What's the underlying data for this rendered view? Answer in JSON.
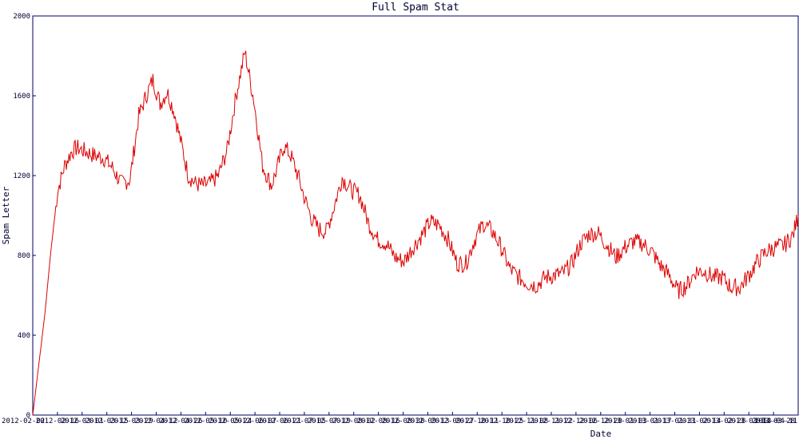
{
  "chart_data": {
    "type": "line",
    "title": "Full Spam Stat",
    "xlabel": "Date",
    "ylabel": "Spam Letter",
    "ylim": [
      0,
      2000
    ],
    "yticks": [
      "0",
      "400",
      "800",
      "1200",
      "1600",
      "2000"
    ],
    "grid": false,
    "colors": {
      "line": "#dd0000",
      "axis": "#000066",
      "text": "#000033"
    },
    "x_tick_labels": [
      "2012-02-02",
      "2012-02-16",
      "2012-03-01",
      "2012-03-15",
      "2012-03-29",
      "2012-04-12",
      "2012-04-26",
      "2012-05-10",
      "2012-05-24",
      "2012-06-07",
      "2012-06-21",
      "2012-07-05",
      "2012-07-19",
      "2012-08-02",
      "2012-08-16",
      "2012-08-30",
      "2012-09-13",
      "2012-09-27",
      "2012-10-11",
      "2012-10-25",
      "2012-11-08",
      "2012-11-22",
      "2012-12-06",
      "2012-12-20",
      "2013-01-03",
      "2013-01-17",
      "2013-01-31",
      "2013-02-14",
      "2013-02-28",
      "2013-03-14",
      "2013-03-28",
      "2013-04-11"
    ],
    "series": [
      {
        "x_day": [
          0,
          3,
          7,
          10,
          14,
          18,
          22,
          25,
          30,
          35,
          40,
          45,
          50,
          55,
          60,
          65,
          68,
          72,
          76,
          80,
          84,
          88,
          92,
          96,
          100,
          105,
          110,
          115,
          120,
          125,
          130,
          135,
          138,
          142,
          146,
          150,
          154,
          158,
          162,
          166,
          170,
          175,
          180,
          185,
          190,
          195,
          200,
          205,
          210,
          215,
          220,
          225,
          230,
          235,
          240,
          245,
          250,
          255,
          260,
          265,
          270,
          275,
          280,
          285,
          290,
          295,
          300,
          305,
          310,
          315,
          320,
          325,
          330,
          335,
          340,
          345,
          350,
          355,
          360,
          365,
          370,
          375,
          380,
          385,
          390,
          395,
          400,
          405,
          410,
          415,
          420,
          425,
          430,
          433
        ],
        "values": [
          0,
          220,
          520,
          800,
          1120,
          1250,
          1320,
          1340,
          1320,
          1300,
          1290,
          1240,
          1160,
          1180,
          1500,
          1620,
          1680,
          1560,
          1620,
          1520,
          1360,
          1200,
          1160,
          1150,
          1160,
          1200,
          1330,
          1600,
          1820,
          1580,
          1250,
          1150,
          1230,
          1350,
          1300,
          1200,
          1080,
          980,
          930,
          920,
          1030,
          1190,
          1130,
          1100,
          960,
          880,
          860,
          790,
          770,
          840,
          900,
          970,
          950,
          880,
          760,
          760,
          880,
          960,
          920,
          840,
          730,
          690,
          660,
          650,
          690,
          700,
          710,
          760,
          860,
          910,
          910,
          850,
          790,
          840,
          870,
          860,
          820,
          750,
          700,
          620,
          650,
          720,
          720,
          690,
          690,
          640,
          640,
          700,
          770,
          820,
          840,
          850,
          900,
          1000
        ]
      }
    ]
  }
}
